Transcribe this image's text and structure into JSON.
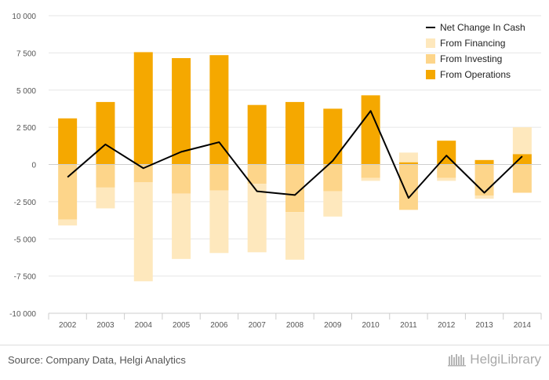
{
  "chart_data": {
    "type": "bar",
    "stacked": true,
    "categories": [
      "2002",
      "2003",
      "2004",
      "2005",
      "2006",
      "2007",
      "2008",
      "2009",
      "2010",
      "2011",
      "2012",
      "2013",
      "2014"
    ],
    "series": [
      {
        "name": "From Operations",
        "kind": "bar",
        "color": "#f5a800",
        "values": [
          3100,
          4200,
          7550,
          7150,
          7350,
          4000,
          4200,
          3750,
          4650,
          150,
          1600,
          300,
          700
        ]
      },
      {
        "name": "From Investing",
        "kind": "bar",
        "color": "#fdd58a",
        "values": [
          -3700,
          -1550,
          -1200,
          -1950,
          -1750,
          -1300,
          -3200,
          -1800,
          -900,
          -3050,
          -900,
          -2100,
          -1900
        ]
      },
      {
        "name": "From Financing",
        "kind": "bar",
        "color": "#fee8bd",
        "values": [
          -400,
          -1400,
          -6650,
          -4400,
          -4200,
          -4600,
          -3200,
          -1700,
          -200,
          650,
          -200,
          -200,
          1800
        ]
      },
      {
        "name": "Net Change In Cash",
        "kind": "line",
        "color": "#000000",
        "values": [
          -850,
          1350,
          -250,
          850,
          1500,
          -1800,
          -2050,
          250,
          3600,
          -2250,
          600,
          -1900,
          550
        ]
      }
    ],
    "legend_order": [
      "Net Change In Cash",
      "From Financing",
      "From Investing",
      "From Operations"
    ],
    "legend_position": "top-right",
    "yticks": [
      10000,
      7500,
      5000,
      2500,
      0,
      -2500,
      -5000,
      -7500,
      -10000
    ],
    "ytick_labels": [
      "10 000",
      "7 500",
      "5 000",
      "2 500",
      "0",
      "-2 500",
      "-5 000",
      "-7 500",
      "-10 000"
    ],
    "ylim": [
      -10000,
      10000
    ],
    "grid": true
  },
  "footer": {
    "source": "Source: Company Data, Helgi Analytics",
    "brand": "HelgiLibrary"
  }
}
